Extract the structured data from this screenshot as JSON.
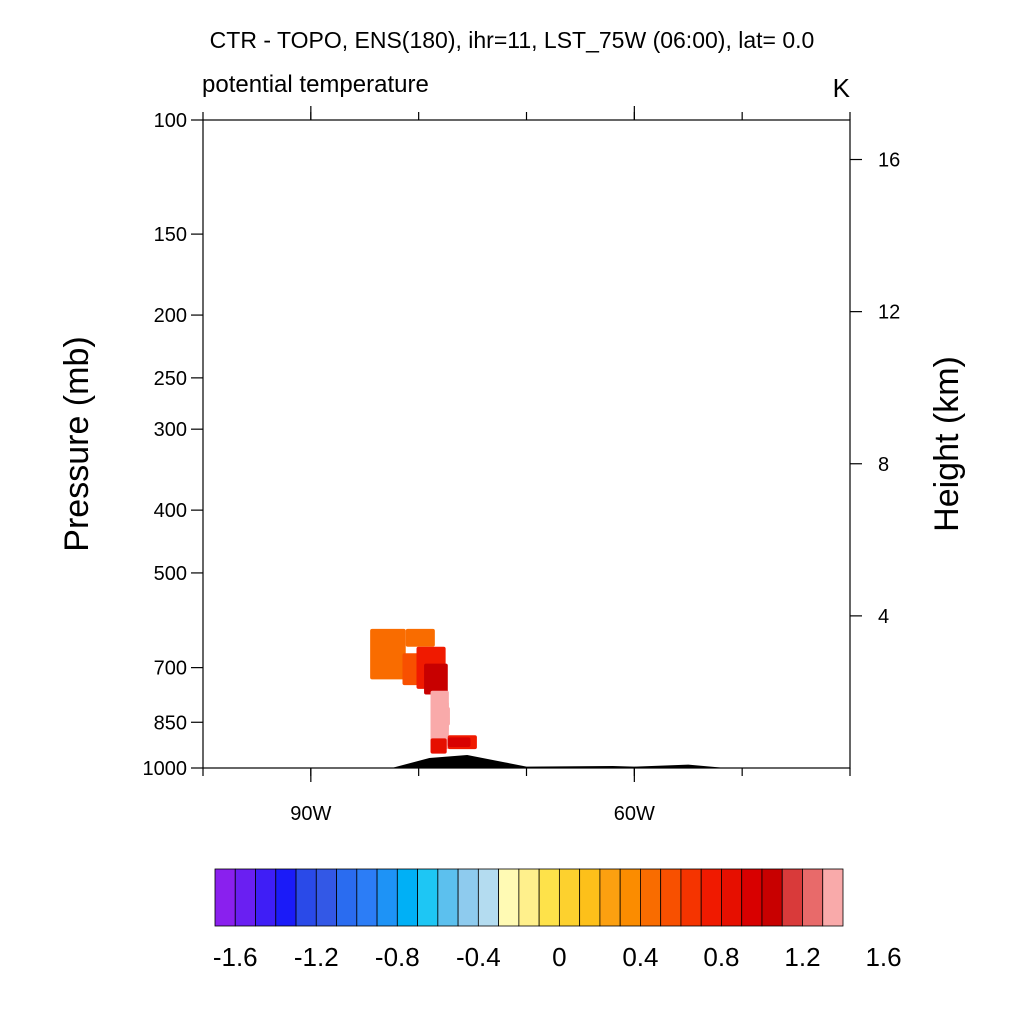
{
  "chart_data": {
    "type": "heatmap",
    "title": "CTR - TOPO, ENS(180), ihr=11, LST_75W (06:00), lat=  0.0",
    "subtitle": "potential temperature",
    "units": "K",
    "ylabel": "Pressure (mb)",
    "ylabel_right": "Height (km)",
    "xlabel": "",
    "x_ticks": [
      {
        "value": -90,
        "label": "90W"
      },
      {
        "value": -60,
        "label": "60W"
      }
    ],
    "xlim": [
      -100,
      -40
    ],
    "y_ticks": [
      {
        "value": 100,
        "label": "100"
      },
      {
        "value": 150,
        "label": "150"
      },
      {
        "value": 200,
        "label": "200"
      },
      {
        "value": 250,
        "label": "250"
      },
      {
        "value": 300,
        "label": "300"
      },
      {
        "value": 400,
        "label": "400"
      },
      {
        "value": 500,
        "label": "500"
      },
      {
        "value": 700,
        "label": "700"
      },
      {
        "value": 850,
        "label": "850"
      },
      {
        "value": 1000,
        "label": "1000"
      }
    ],
    "ylim": [
      1000,
      100
    ],
    "y_scale": "log",
    "right_ticks": [
      {
        "value": 16,
        "label": "16"
      },
      {
        "value": 12,
        "label": "12"
      },
      {
        "value": 8,
        "label": "8"
      },
      {
        "value": 4,
        "label": "4"
      }
    ],
    "contour_cells": [
      {
        "lon": [
          -84.5,
          -81.2
        ],
        "p": [
          610,
          730
        ],
        "value": 0.4
      },
      {
        "lon": [
          -81.2,
          -78.5
        ],
        "p": [
          610,
          650
        ],
        "value": 0.4
      },
      {
        "lon": [
          -81.5,
          -79.5
        ],
        "p": [
          665,
          745
        ],
        "value": 0.5
      },
      {
        "lon": [
          -80.2,
          -77.5
        ],
        "p": [
          650,
          755
        ],
        "value": 0.75
      },
      {
        "lon": [
          -79.5,
          -77.3
        ],
        "p": [
          690,
          770
        ],
        "value": 1.0
      },
      {
        "lon": [
          -78.9,
          -77.2
        ],
        "p": [
          760,
          935
        ],
        "value": 1.3
      },
      {
        "lon": [
          -78.3,
          -77.2
        ],
        "p": [
          790,
          880
        ],
        "value": 1.45
      },
      {
        "lon": [
          -77.7,
          -77.1
        ],
        "p": [
          805,
          860
        ],
        "value": 1.6
      },
      {
        "lon": [
          -78.9,
          -77.4
        ],
        "p": [
          900,
          950
        ],
        "value": 0.8
      },
      {
        "lon": [
          -77.3,
          -74.6
        ],
        "p": [
          890,
          935
        ],
        "value": 0.7
      },
      {
        "lon": [
          -77.3,
          -75.2
        ],
        "p": [
          897,
          928
        ],
        "value": 0.95
      }
    ],
    "topography": [
      {
        "lon": -100,
        "p": 1000
      },
      {
        "lon": -82.5,
        "p": 1000
      },
      {
        "lon": -79,
        "p": 965
      },
      {
        "lon": -75.5,
        "p": 955
      },
      {
        "lon": -70,
        "p": 995
      },
      {
        "lon": -62,
        "p": 993
      },
      {
        "lon": -60,
        "p": 995
      },
      {
        "lon": -55,
        "p": 988
      },
      {
        "lon": -51.5,
        "p": 1000
      },
      {
        "lon": -40,
        "p": 1000
      }
    ],
    "colorbar": {
      "min": -1.7,
      "step": 0.1,
      "tick_labels": [
        "-1.6",
        "-1.2",
        "-0.8",
        "-0.4",
        "0",
        "0.4",
        "0.8",
        "1.2",
        "1.6"
      ],
      "tick_values": [
        -1.6,
        -1.2,
        -0.8,
        -0.4,
        0,
        0.4,
        0.8,
        1.2,
        1.6
      ],
      "colors": [
        "#8a20ee",
        "#6a1ff2",
        "#3f1ef6",
        "#1b1bf8",
        "#2a4ae8",
        "#3358e6",
        "#2a6cf0",
        "#2c7df6",
        "#1e93f6",
        "#00b0f6",
        "#1ec6f4",
        "#5cc0ee",
        "#8ecbee",
        "#b4dcf0",
        "#fffab4",
        "#fff08c",
        "#fee24a",
        "#fdd12e",
        "#fdc01a",
        "#fca010",
        "#fb8c00",
        "#f96c00",
        "#f85000",
        "#f53400",
        "#f01a00",
        "#e60f00",
        "#d80000",
        "#c80000",
        "#d93a3a",
        "#e86a6a",
        "#f9aaaa"
      ]
    }
  }
}
